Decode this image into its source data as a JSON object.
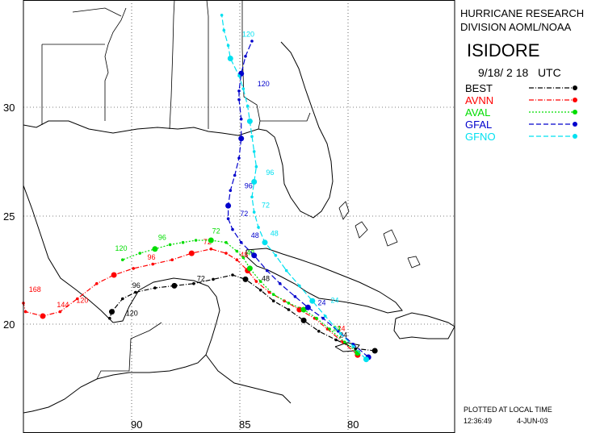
{
  "header": {
    "org_line1": "HURRICANE RESEARCH",
    "org_line2": "DIVISION AOML/NOAA",
    "storm_name": "ISIDORE",
    "init_time": "9/18/ 2 18   UTC"
  },
  "legend": [
    {
      "label": "BEST",
      "color": "#000000",
      "style": "dashdot"
    },
    {
      "label": "AVNN",
      "color": "#ff0000",
      "style": "dashdot"
    },
    {
      "label": "AVAL",
      "color": "#00dd00",
      "style": "dotted"
    },
    {
      "label": "GFAL",
      "color": "#0000cc",
      "style": "dashed"
    },
    {
      "label": "GFNO",
      "color": "#00e0f0",
      "style": "dashed"
    }
  ],
  "footer": {
    "plotted": "PLOTTED AT LOCAL TIME",
    "time": "12:36:49",
    "date": "4-JUN-03"
  },
  "axes": {
    "lat_labels": [
      "30",
      "25",
      "20"
    ],
    "lat_values": [
      30,
      25,
      20
    ],
    "lon_labels": [
      "90",
      "85",
      "80"
    ],
    "lon_values": [
      90,
      85,
      80
    ],
    "lon_range": [
      95,
      75
    ],
    "lat_range": [
      15,
      35
    ]
  },
  "tracks": [
    {
      "id": "best",
      "color": "#000000",
      "dash": "6,2,1,2",
      "points": [
        [
          78.7,
          18.8
        ],
        [
          79.6,
          18.9
        ],
        [
          80.5,
          19.3
        ],
        [
          81.3,
          19.7
        ],
        [
          82.0,
          20.2
        ],
        [
          82.7,
          20.7
        ],
        [
          83.4,
          21.1
        ],
        [
          84.0,
          21.6
        ],
        [
          84.7,
          22.1
        ],
        [
          85.3,
          22.3
        ],
        [
          86.2,
          22.1
        ],
        [
          87.1,
          21.9
        ],
        [
          88.0,
          21.8
        ],
        [
          88.9,
          21.7
        ],
        [
          89.8,
          21.5
        ],
        [
          90.4,
          21.2
        ],
        [
          90.9,
          20.6
        ],
        [
          91.0,
          20.3
        ]
      ],
      "labels": [
        {
          "lon": 80.5,
          "lat": 19.3,
          "text": "24"
        },
        {
          "lon": 84.1,
          "lat": 21.9,
          "text": "48"
        },
        {
          "lon": 87.1,
          "lat": 21.9,
          "text": "72"
        },
        {
          "lon": 90.1,
          "lat": 21.6,
          "text": "96"
        },
        {
          "lon": 90.4,
          "lat": 20.3,
          "text": "120"
        }
      ]
    },
    {
      "id": "avnn",
      "color": "#ff0000",
      "dash": "6,2,1,2",
      "points": [
        [
          79.5,
          18.6
        ],
        [
          80.2,
          19.2
        ],
        [
          80.9,
          19.8
        ],
        [
          81.5,
          20.3
        ],
        [
          82.2,
          20.7
        ],
        [
          82.9,
          21.1
        ],
        [
          83.6,
          21.5
        ],
        [
          84.2,
          22.0
        ],
        [
          84.6,
          22.5
        ],
        [
          85.1,
          23.0
        ],
        [
          85.6,
          23.3
        ],
        [
          86.3,
          23.5
        ],
        [
          87.2,
          23.3
        ],
        [
          88.1,
          23.0
        ],
        [
          89.0,
          22.8
        ],
        [
          89.9,
          22.6
        ],
        [
          90.8,
          22.3
        ],
        [
          91.6,
          21.9
        ],
        [
          92.5,
          21.2
        ],
        [
          93.3,
          20.6
        ],
        [
          94.1,
          20.4
        ],
        [
          94.9,
          20.6
        ],
        [
          95.0,
          21.0
        ]
      ],
      "labels": [
        {
          "lon": 80.6,
          "lat": 19.6,
          "text": "24"
        },
        {
          "lon": 85.1,
          "lat": 23.0,
          "text": "48"
        },
        {
          "lon": 86.8,
          "lat": 23.6,
          "text": "72"
        },
        {
          "lon": 89.4,
          "lat": 22.9,
          "text": "96"
        },
        {
          "lon": 92.7,
          "lat": 20.9,
          "text": "120"
        },
        {
          "lon": 93.6,
          "lat": 20.7,
          "text": "144"
        },
        {
          "lon": 94.9,
          "lat": 21.4,
          "text": "168"
        }
      ]
    },
    {
      "id": "aval",
      "color": "#00dd00",
      "dash": "2,2",
      "points": [
        [
          79.5,
          18.7
        ],
        [
          80.1,
          19.2
        ],
        [
          80.8,
          19.8
        ],
        [
          81.4,
          20.3
        ],
        [
          82.0,
          20.7
        ],
        [
          82.7,
          21.0
        ],
        [
          83.4,
          21.4
        ],
        [
          84.0,
          22.0
        ],
        [
          84.5,
          22.6
        ],
        [
          84.8,
          23.1
        ],
        [
          85.1,
          23.4
        ],
        [
          85.6,
          23.8
        ],
        [
          86.3,
          23.9
        ],
        [
          87.0,
          23.9
        ],
        [
          87.6,
          23.8
        ],
        [
          88.2,
          23.7
        ],
        [
          88.9,
          23.5
        ],
        [
          89.6,
          23.3
        ],
        [
          90.4,
          23.0
        ]
      ],
      "labels": [
        {
          "lon": 80.8,
          "lat": 19.6,
          "text": "24"
        },
        {
          "lon": 84.8,
          "lat": 23.1,
          "text": "48"
        },
        {
          "lon": 86.4,
          "lat": 24.1,
          "text": "72"
        },
        {
          "lon": 88.9,
          "lat": 23.8,
          "text": "96"
        },
        {
          "lon": 90.9,
          "lat": 23.3,
          "text": "120"
        }
      ]
    },
    {
      "id": "gfal",
      "color": "#0000cc",
      "dash": "7,3",
      "points": [
        [
          79.0,
          18.5
        ],
        [
          79.7,
          19.1
        ],
        [
          80.4,
          19.7
        ],
        [
          81.1,
          20.3
        ],
        [
          81.8,
          20.8
        ],
        [
          82.4,
          21.3
        ],
        [
          83.1,
          21.9
        ],
        [
          83.7,
          22.5
        ],
        [
          84.3,
          23.2
        ],
        [
          84.9,
          23.8
        ],
        [
          85.3,
          24.4
        ],
        [
          85.5,
          24.9
        ],
        [
          85.5,
          25.5
        ],
        [
          85.4,
          26.2
        ],
        [
          85.2,
          26.9
        ],
        [
          85.0,
          27.7
        ],
        [
          84.9,
          28.6
        ],
        [
          84.9,
          29.5
        ],
        [
          85.0,
          30.4
        ],
        [
          85.0,
          30.8
        ],
        [
          84.9,
          31.6
        ],
        [
          84.7,
          32.4
        ],
        [
          84.4,
          33.1
        ]
      ],
      "labels": [
        {
          "lon": 81.5,
          "lat": 20.8,
          "text": "24"
        },
        {
          "lon": 84.6,
          "lat": 23.9,
          "text": "48"
        },
        {
          "lon": 85.1,
          "lat": 24.9,
          "text": "72"
        },
        {
          "lon": 84.9,
          "lat": 26.2,
          "text": "96"
        },
        {
          "lon": 84.3,
          "lat": 30.9,
          "text": "120"
        }
      ]
    },
    {
      "id": "gfno",
      "color": "#00e0f0",
      "dash": "7,3",
      "points": [
        [
          79.1,
          18.4
        ],
        [
          79.7,
          19.0
        ],
        [
          80.3,
          19.6
        ],
        [
          81.0,
          20.4
        ],
        [
          81.6,
          21.1
        ],
        [
          82.2,
          21.8
        ],
        [
          82.8,
          22.5
        ],
        [
          83.3,
          23.2
        ],
        [
          83.8,
          23.8
        ],
        [
          84.1,
          24.5
        ],
        [
          84.3,
          25.2
        ],
        [
          84.4,
          25.9
        ],
        [
          84.3,
          26.6
        ],
        [
          84.2,
          27.3
        ],
        [
          84.3,
          28.0
        ],
        [
          84.4,
          28.7
        ],
        [
          84.5,
          29.4
        ],
        [
          84.6,
          30.1
        ],
        [
          84.8,
          30.9
        ],
        [
          85.0,
          31.5
        ],
        [
          85.4,
          32.3
        ],
        [
          85.5,
          32.9
        ],
        [
          85.7,
          33.6
        ],
        [
          85.8,
          34.3
        ]
      ],
      "labels": [
        {
          "lon": 80.9,
          "lat": 20.9,
          "text": "24"
        },
        {
          "lon": 83.7,
          "lat": 24.0,
          "text": "48"
        },
        {
          "lon": 84.1,
          "lat": 25.3,
          "text": "72"
        },
        {
          "lon": 83.9,
          "lat": 26.8,
          "text": "96"
        },
        {
          "lon": 85.0,
          "lat": 33.2,
          "text": "120"
        }
      ]
    }
  ]
}
